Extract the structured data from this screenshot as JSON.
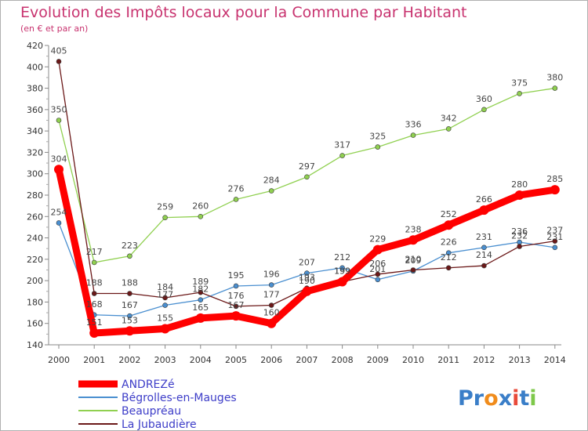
{
  "chart_data": {
    "type": "line",
    "title": "Evolution des Impôts locaux pour la Commune par Habitant",
    "subtitle": "(en € et par an)",
    "xlabel": "",
    "ylabel": "",
    "ylim": [
      140,
      420
    ],
    "yticks": [
      "140",
      "160",
      "180",
      "200",
      "220",
      "240",
      "260",
      "280",
      "300",
      "320",
      "340",
      "360",
      "380",
      "400",
      "420"
    ],
    "categories": [
      "2000",
      "2001",
      "2002",
      "2003",
      "2004",
      "2005",
      "2006",
      "2007",
      "2008",
      "2009",
      "2010",
      "2011",
      "2012",
      "2013",
      "2014"
    ],
    "grid": false,
    "legend_position": "bottom-left",
    "series": [
      {
        "name": "Beaupréau",
        "color": "#90d050",
        "values": [
          350,
          217,
          223,
          259,
          260,
          276,
          284,
          297,
          317,
          325,
          336,
          342,
          360,
          375,
          380
        ]
      },
      {
        "name": "Bégrolles-en-Mauges",
        "color": "#4a8fd0",
        "values": [
          254,
          168,
          167,
          177,
          182,
          195,
          196,
          207,
          212,
          201,
          209,
          226,
          231,
          236,
          231
        ]
      },
      {
        "name": "La Jubaudière",
        "color": "#6b1818",
        "values": [
          405,
          188,
          188,
          184,
          189,
          176,
          177,
          193,
          199,
          206,
          210,
          212,
          214,
          232,
          237
        ]
      },
      {
        "name": "ANDREZé",
        "color": "#ff0000",
        "values": [
          304,
          151,
          153,
          155,
          165,
          167,
          160,
          190,
          199,
          229,
          238,
          252,
          266,
          280,
          285
        ]
      }
    ],
    "legend": [
      "ANDREZé",
      "Bégrolles-en-Mauges",
      "Beaupréau",
      "La Jubaudière"
    ],
    "colors": {
      "ANDREZé": "#ff0000",
      "Bégrolles-en-Mauges": "#4a8fd0",
      "Beaupréau": "#90d050",
      "La Jubaudière": "#6b1818"
    }
  },
  "logo": {
    "text": "Proxiti",
    "letters": [
      "P",
      "r",
      "o",
      "x",
      "i",
      "t",
      "i"
    ],
    "colors": [
      "#3a7ec8",
      "#3a7ec8",
      "#f08c1c",
      "#3a7ec8",
      "#e84a3a",
      "#3a7ec8",
      "#7ec84a"
    ]
  }
}
